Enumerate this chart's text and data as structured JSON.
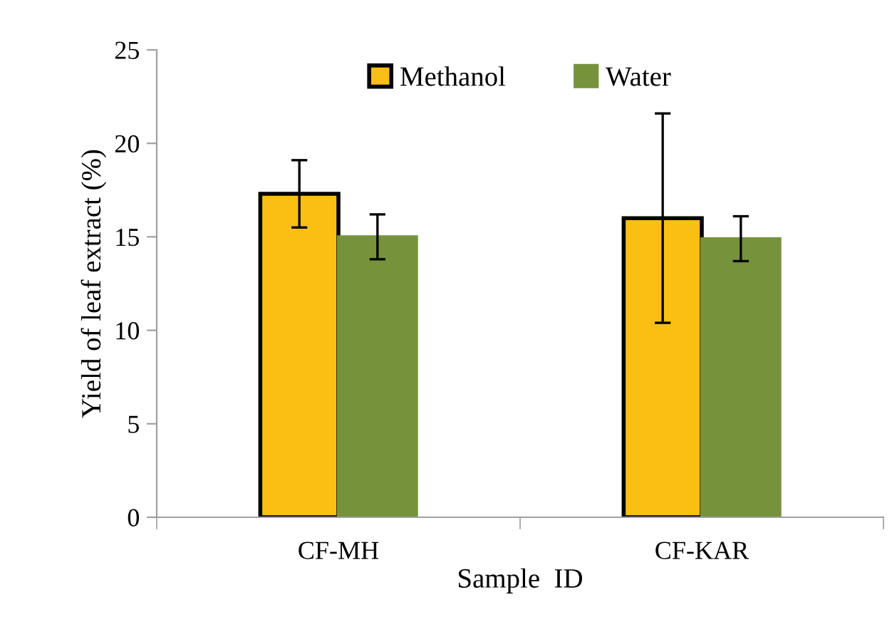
{
  "chart_data": {
    "type": "bar",
    "xlabel": "Sample  ID",
    "ylabel": "Yield of leaf extract (%)",
    "categories": [
      "CF-MH",
      "CF-KAR"
    ],
    "series": [
      {
        "name": "Methanol",
        "color": "#fbbf14",
        "values": [
          17.3,
          16.0
        ],
        "errors": [
          1.8,
          5.6
        ]
      },
      {
        "name": "Water",
        "color": "#76933c",
        "values": [
          15.0,
          14.9
        ],
        "errors": [
          1.2,
          1.2
        ]
      }
    ],
    "ylim": [
      0,
      25
    ],
    "yticks": [
      0,
      5,
      10,
      15,
      20,
      25
    ],
    "grid": false,
    "legend": "top"
  }
}
